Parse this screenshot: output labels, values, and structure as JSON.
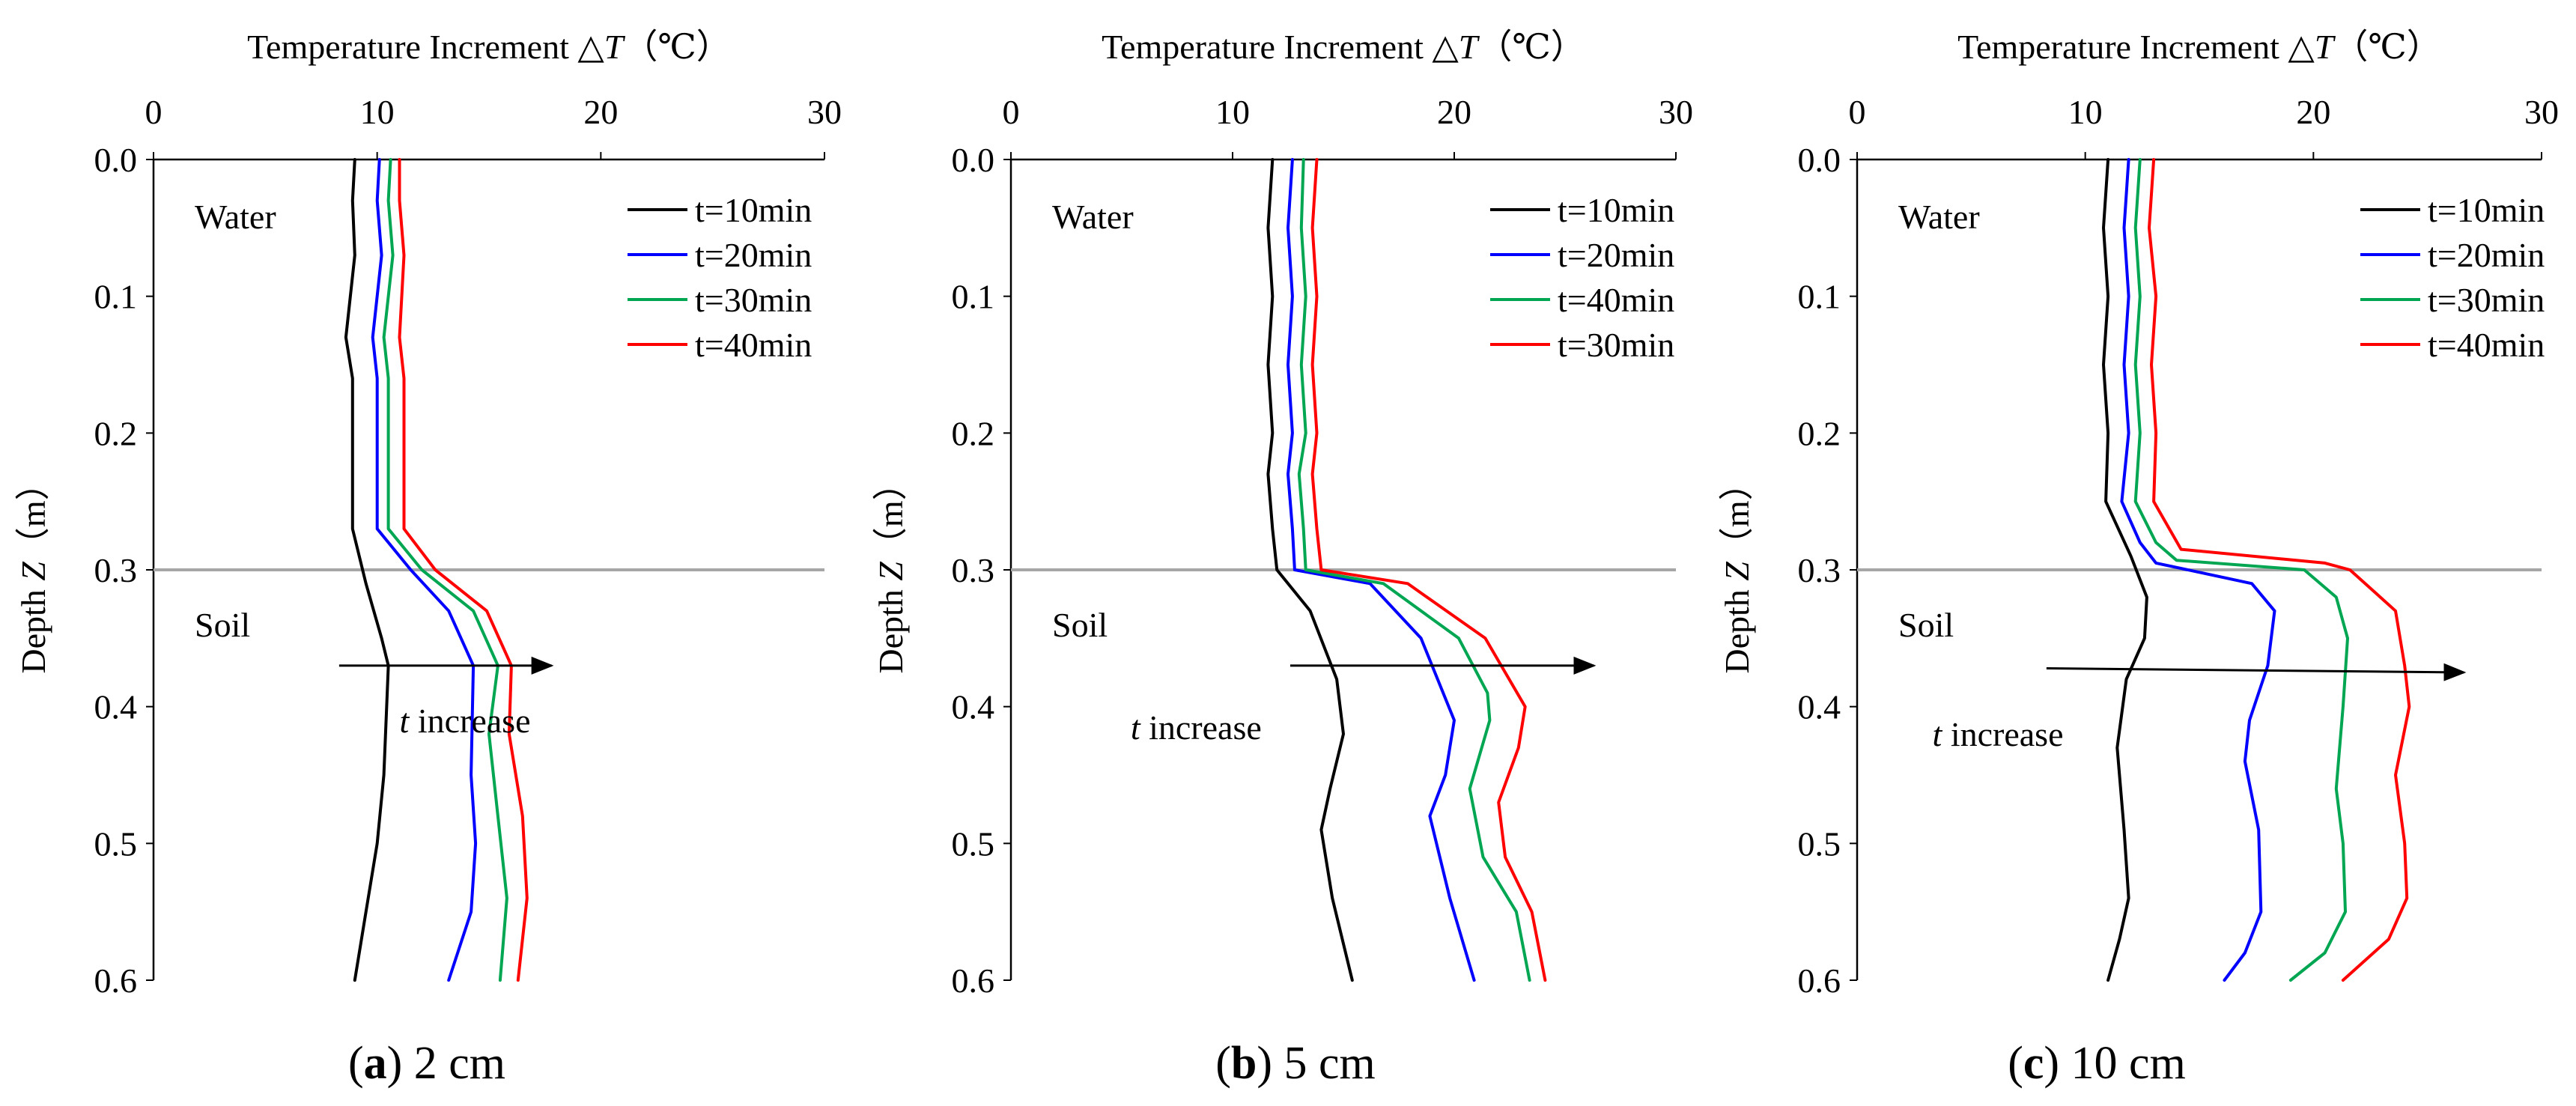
{
  "figure": {
    "line_colors": {
      "black": "#000000",
      "blue": "#0000ff",
      "green": "#00a651",
      "red": "#ff0000",
      "interface": "#a6a6a6"
    }
  },
  "chart_data": [
    {
      "type": "line",
      "panel_letter": "a",
      "caption": "2 cm",
      "title": "",
      "xlabel": {
        "prefix": "Temperature Increment △",
        "var": "T",
        "suffix": "（℃）"
      },
      "ylabel": {
        "prefix": "Depth ",
        "var": "Z",
        "suffix": "（m）"
      },
      "xlim": [
        0,
        30
      ],
      "ylim": [
        0,
        0.6
      ],
      "x_ticks": [
        "0",
        "10",
        "20",
        "30"
      ],
      "y_ticks": [
        "0.0",
        "0.1",
        "0.2",
        "0.3",
        "0.4",
        "0.5",
        "0.6"
      ],
      "interface_depth": 0.3,
      "regions": {
        "upper": "Water",
        "lower": "Soil"
      },
      "annotation": {
        "var": "t",
        "text": " increase",
        "arrow_from": [
          8.3,
          0.37
        ],
        "arrow_to": [
          17.8,
          0.37
        ],
        "label_at": [
          11,
          0.41
        ]
      },
      "legend": [
        "t=10min",
        "t=20min",
        "t=30min",
        "t=40min"
      ],
      "series": [
        {
          "name": "t=10min",
          "color": "#000000",
          "points": [
            [
              9.0,
              0.0
            ],
            [
              8.9,
              0.03
            ],
            [
              9.0,
              0.07
            ],
            [
              8.6,
              0.13
            ],
            [
              8.9,
              0.16
            ],
            [
              8.9,
              0.27
            ],
            [
              9.5,
              0.31
            ],
            [
              10.2,
              0.35
            ],
            [
              10.5,
              0.37
            ],
            [
              10.3,
              0.45
            ],
            [
              10.0,
              0.5
            ],
            [
              9.5,
              0.55
            ],
            [
              9.0,
              0.6
            ]
          ]
        },
        {
          "name": "t=20min",
          "color": "#0000ff",
          "points": [
            [
              10.1,
              0.0
            ],
            [
              10.0,
              0.03
            ],
            [
              10.2,
              0.07
            ],
            [
              9.8,
              0.13
            ],
            [
              10.0,
              0.16
            ],
            [
              10.0,
              0.27
            ],
            [
              11.5,
              0.3
            ],
            [
              13.2,
              0.33
            ],
            [
              14.3,
              0.37
            ],
            [
              14.2,
              0.45
            ],
            [
              14.4,
              0.5
            ],
            [
              14.2,
              0.55
            ],
            [
              13.2,
              0.6
            ]
          ]
        },
        {
          "name": "t=30min",
          "color": "#00a651",
          "points": [
            [
              10.6,
              0.0
            ],
            [
              10.5,
              0.03
            ],
            [
              10.7,
              0.07
            ],
            [
              10.3,
              0.13
            ],
            [
              10.5,
              0.16
            ],
            [
              10.5,
              0.27
            ],
            [
              12.0,
              0.3
            ],
            [
              14.3,
              0.33
            ],
            [
              15.4,
              0.37
            ],
            [
              15.0,
              0.42
            ],
            [
              15.4,
              0.48
            ],
            [
              15.8,
              0.54
            ],
            [
              15.5,
              0.6
            ]
          ]
        },
        {
          "name": "t=40min",
          "color": "#ff0000",
          "points": [
            [
              11.0,
              0.0
            ],
            [
              11.0,
              0.03
            ],
            [
              11.2,
              0.07
            ],
            [
              11.0,
              0.13
            ],
            [
              11.2,
              0.16
            ],
            [
              11.2,
              0.27
            ],
            [
              12.6,
              0.3
            ],
            [
              14.9,
              0.33
            ],
            [
              16.0,
              0.37
            ],
            [
              15.9,
              0.42
            ],
            [
              16.5,
              0.48
            ],
            [
              16.7,
              0.54
            ],
            [
              16.3,
              0.6
            ]
          ]
        }
      ]
    },
    {
      "type": "line",
      "panel_letter": "b",
      "caption": "5 cm",
      "title": "",
      "xlabel": {
        "prefix": "Temperature Increment △",
        "var": "T",
        "suffix": "（℃）"
      },
      "ylabel": {
        "prefix": "Depth ",
        "var": "Z",
        "suffix": "（m）"
      },
      "xlim": [
        0,
        30
      ],
      "ylim": [
        0,
        0.6
      ],
      "x_ticks": [
        "0",
        "10",
        "20",
        "30"
      ],
      "y_ticks": [
        "0.0",
        "0.1",
        "0.2",
        "0.3",
        "0.4",
        "0.5",
        "0.6"
      ],
      "interface_depth": 0.3,
      "regions": {
        "upper": "Water",
        "lower": "Soil"
      },
      "annotation": {
        "var": "t",
        "text": " increase",
        "arrow_from": [
          12.6,
          0.37
        ],
        "arrow_to": [
          26.3,
          0.37
        ],
        "label_at": [
          5.4,
          0.415
        ]
      },
      "legend": [
        "t=10min",
        "t=20min",
        "t=40min",
        "t=30min"
      ],
      "series": [
        {
          "name": "t=10min",
          "color": "#000000",
          "points": [
            [
              11.8,
              0.0
            ],
            [
              11.6,
              0.05
            ],
            [
              11.8,
              0.1
            ],
            [
              11.6,
              0.15
            ],
            [
              11.8,
              0.2
            ],
            [
              11.6,
              0.23
            ],
            [
              11.8,
              0.27
            ],
            [
              12.0,
              0.3
            ],
            [
              13.5,
              0.33
            ],
            [
              14.7,
              0.38
            ],
            [
              15.0,
              0.42
            ],
            [
              14.4,
              0.46
            ],
            [
              14.0,
              0.49
            ],
            [
              14.5,
              0.54
            ],
            [
              15.4,
              0.6
            ]
          ]
        },
        {
          "name": "t=20min",
          "color": "#0000ff",
          "points": [
            [
              12.7,
              0.0
            ],
            [
              12.5,
              0.05
            ],
            [
              12.7,
              0.1
            ],
            [
              12.5,
              0.15
            ],
            [
              12.7,
              0.2
            ],
            [
              12.5,
              0.23
            ],
            [
              12.7,
              0.27
            ],
            [
              12.8,
              0.3
            ],
            [
              16.2,
              0.31
            ],
            [
              18.5,
              0.35
            ],
            [
              20.0,
              0.41
            ],
            [
              19.6,
              0.45
            ],
            [
              18.9,
              0.48
            ],
            [
              19.8,
              0.54
            ],
            [
              20.9,
              0.6
            ]
          ]
        },
        {
          "name": "t=40min",
          "color": "#00a651",
          "points": [
            [
              13.2,
              0.0
            ],
            [
              13.1,
              0.05
            ],
            [
              13.3,
              0.1
            ],
            [
              13.1,
              0.15
            ],
            [
              13.3,
              0.2
            ],
            [
              13.0,
              0.23
            ],
            [
              13.2,
              0.27
            ],
            [
              13.3,
              0.3
            ],
            [
              16.8,
              0.31
            ],
            [
              20.2,
              0.35
            ],
            [
              21.5,
              0.39
            ],
            [
              21.6,
              0.41
            ],
            [
              20.7,
              0.46
            ],
            [
              21.3,
              0.51
            ],
            [
              22.8,
              0.55
            ],
            [
              23.4,
              0.6
            ]
          ]
        },
        {
          "name": "t=30min",
          "color": "#ff0000",
          "points": [
            [
              13.8,
              0.0
            ],
            [
              13.6,
              0.05
            ],
            [
              13.8,
              0.1
            ],
            [
              13.6,
              0.15
            ],
            [
              13.8,
              0.2
            ],
            [
              13.6,
              0.23
            ],
            [
              13.8,
              0.27
            ],
            [
              14.0,
              0.3
            ],
            [
              17.9,
              0.31
            ],
            [
              21.4,
              0.35
            ],
            [
              23.2,
              0.4
            ],
            [
              22.9,
              0.43
            ],
            [
              22.0,
              0.47
            ],
            [
              22.3,
              0.51
            ],
            [
              23.5,
              0.55
            ],
            [
              24.1,
              0.6
            ]
          ]
        }
      ]
    },
    {
      "type": "line",
      "panel_letter": "c",
      "caption": "10 cm",
      "title": "",
      "xlabel": {
        "prefix": "Temperature Increment △",
        "var": "T",
        "suffix": "（℃）"
      },
      "ylabel": {
        "prefix": "Depth ",
        "var": "Z",
        "suffix": "（m）"
      },
      "xlim": [
        0,
        30
      ],
      "ylim": [
        0,
        0.6
      ],
      "x_ticks": [
        "0",
        "10",
        "20",
        "30"
      ],
      "y_ticks": [
        "0.0",
        "0.1",
        "0.2",
        "0.3",
        "0.4",
        "0.5",
        "0.6"
      ],
      "interface_depth": 0.3,
      "regions": {
        "upper": "Water",
        "lower": "Soil"
      },
      "annotation": {
        "var": "t",
        "text": " increase",
        "arrow_from": [
          8.3,
          0.372
        ],
        "arrow_to": [
          26.6,
          0.375
        ],
        "label_at": [
          3.3,
          0.42
        ]
      },
      "legend": [
        "t=10min",
        "t=20min",
        "t=30min",
        "t=40min"
      ],
      "series": [
        {
          "name": "t=10min",
          "color": "#000000",
          "points": [
            [
              11.0,
              0.0
            ],
            [
              10.8,
              0.05
            ],
            [
              11.0,
              0.1
            ],
            [
              10.8,
              0.15
            ],
            [
              11.0,
              0.2
            ],
            [
              10.9,
              0.25
            ],
            [
              12.0,
              0.29
            ],
            [
              12.7,
              0.32
            ],
            [
              12.6,
              0.35
            ],
            [
              11.8,
              0.38
            ],
            [
              11.4,
              0.43
            ],
            [
              11.7,
              0.49
            ],
            [
              11.9,
              0.54
            ],
            [
              11.5,
              0.57
            ],
            [
              11.0,
              0.6
            ]
          ]
        },
        {
          "name": "t=20min",
          "color": "#0000ff",
          "points": [
            [
              11.9,
              0.0
            ],
            [
              11.7,
              0.05
            ],
            [
              11.9,
              0.1
            ],
            [
              11.7,
              0.15
            ],
            [
              11.9,
              0.2
            ],
            [
              11.6,
              0.25
            ],
            [
              12.4,
              0.28
            ],
            [
              13.1,
              0.295
            ],
            [
              17.3,
              0.31
            ],
            [
              18.3,
              0.33
            ],
            [
              18.0,
              0.37
            ],
            [
              17.2,
              0.41
            ],
            [
              17.0,
              0.44
            ],
            [
              17.6,
              0.49
            ],
            [
              17.7,
              0.55
            ],
            [
              17.0,
              0.58
            ],
            [
              16.1,
              0.6
            ]
          ]
        },
        {
          "name": "t=30min",
          "color": "#00a651",
          "points": [
            [
              12.4,
              0.0
            ],
            [
              12.2,
              0.05
            ],
            [
              12.4,
              0.1
            ],
            [
              12.2,
              0.15
            ],
            [
              12.4,
              0.2
            ],
            [
              12.2,
              0.25
            ],
            [
              13.1,
              0.28
            ],
            [
              14.0,
              0.293
            ],
            [
              19.6,
              0.3
            ],
            [
              21.0,
              0.32
            ],
            [
              21.5,
              0.35
            ],
            [
              21.3,
              0.4
            ],
            [
              21.0,
              0.46
            ],
            [
              21.3,
              0.5
            ],
            [
              21.4,
              0.55
            ],
            [
              20.5,
              0.58
            ],
            [
              19.0,
              0.6
            ]
          ]
        },
        {
          "name": "t=40min",
          "color": "#ff0000",
          "points": [
            [
              13.0,
              0.0
            ],
            [
              12.8,
              0.05
            ],
            [
              13.1,
              0.1
            ],
            [
              12.9,
              0.15
            ],
            [
              13.1,
              0.2
            ],
            [
              13.0,
              0.25
            ],
            [
              14.2,
              0.285
            ],
            [
              20.5,
              0.295
            ],
            [
              21.6,
              0.3
            ],
            [
              23.6,
              0.33
            ],
            [
              24.0,
              0.37
            ],
            [
              24.2,
              0.4
            ],
            [
              23.6,
              0.45
            ],
            [
              24.0,
              0.5
            ],
            [
              24.1,
              0.54
            ],
            [
              23.3,
              0.57
            ],
            [
              21.3,
              0.6
            ]
          ]
        }
      ]
    }
  ]
}
